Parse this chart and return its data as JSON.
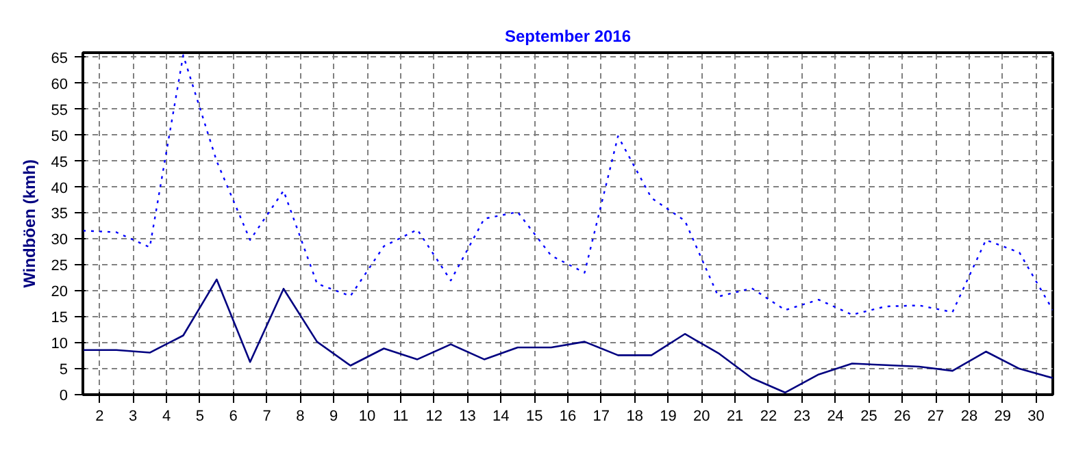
{
  "chart_data": {
    "type": "line",
    "title": "September 2016",
    "ylabel": "Windböen (kmh)",
    "x": [
      1.5,
      2.5,
      3.5,
      4.5,
      5.5,
      6.5,
      7.5,
      8.5,
      9.5,
      10.5,
      11.5,
      12.5,
      13.5,
      14.5,
      15.5,
      16.5,
      17.5,
      18.5,
      19.5,
      20.5,
      21.5,
      22.5,
      23.5,
      24.5,
      25.5,
      26.5,
      27.5,
      28.5,
      29.5,
      30.5
    ],
    "series": [
      {
        "color": "#0000ff",
        "line_style": "dotted",
        "values": [
          31.6,
          31.3,
          28.4,
          65.4,
          45,
          29.8,
          39.3,
          21.4,
          19,
          28.6,
          31.8,
          22,
          33.9,
          35.2,
          26.8,
          23.5,
          49.8,
          37.9,
          33.5,
          18.9,
          20.5,
          16.3,
          18.3,
          15.4,
          17,
          17.2,
          15.9,
          29.8,
          27.4,
          16.3
        ]
      },
      {
        "color": "#000080",
        "line_style": "solid",
        "values": [
          8.6,
          8.6,
          8.1,
          11.4,
          22.2,
          6.3,
          20.4,
          10.2,
          5.6,
          8.9,
          6.8,
          9.7,
          6.8,
          9.1,
          9.1,
          10.2,
          7.6,
          7.6,
          11.7,
          8,
          3.2,
          0.4,
          3.9,
          6,
          5.7,
          5.4,
          4.6,
          8.3,
          5,
          3.2
        ]
      }
    ],
    "xlim": [
      1.5,
      30.5
    ],
    "ylim": [
      0,
      65.9
    ],
    "xticks": [
      2,
      3,
      4,
      5,
      6,
      7,
      8,
      9,
      10,
      11,
      12,
      13,
      14,
      15,
      16,
      17,
      18,
      19,
      20,
      21,
      22,
      23,
      24,
      25,
      26,
      27,
      28,
      29,
      30
    ],
    "yticks": [
      0,
      5,
      10,
      15,
      20,
      25,
      30,
      35,
      40,
      45,
      50,
      55,
      60,
      65
    ],
    "grid": true
  }
}
